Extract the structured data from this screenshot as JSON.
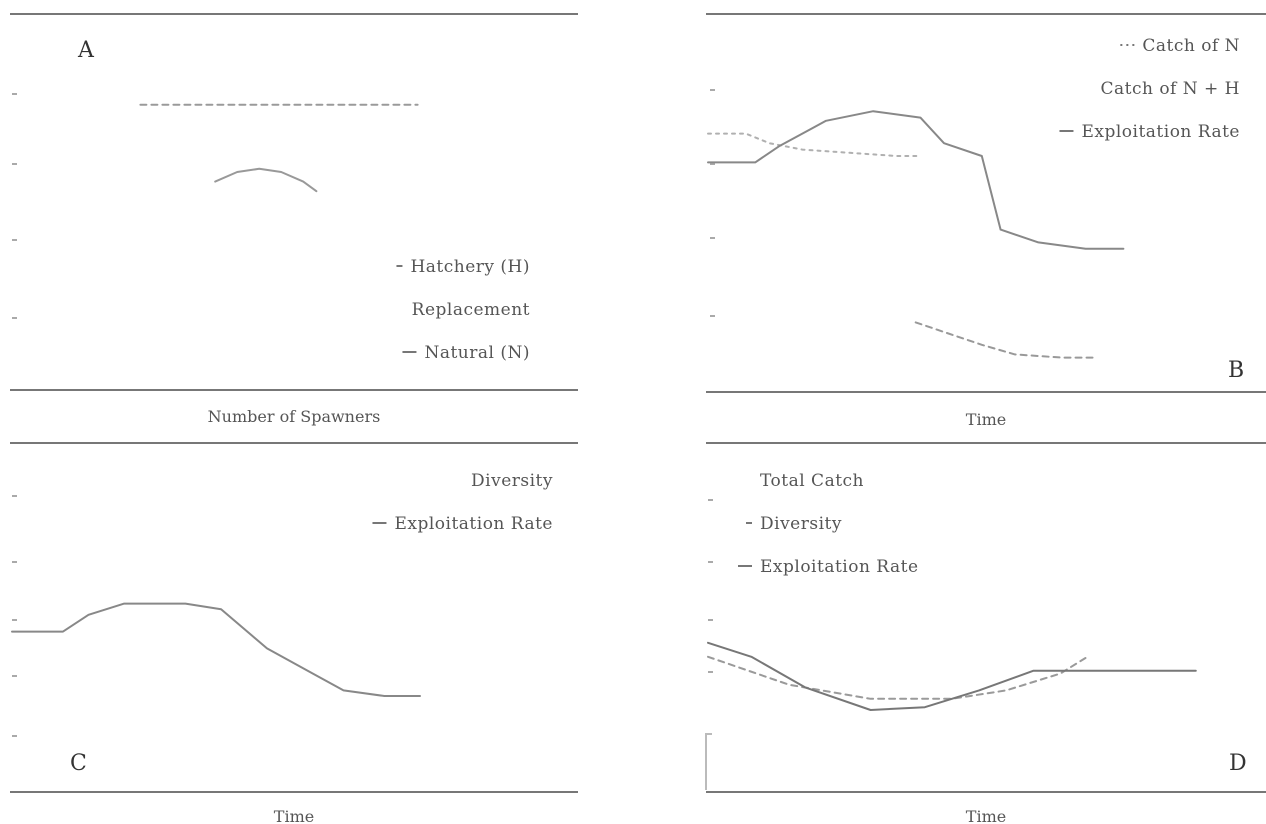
{
  "chart_data": [
    {
      "panel": "A",
      "type": "line",
      "xlabel": "Number of Spawners",
      "legend_placement": "bottom-right",
      "legend": [
        "Hatchery (H)",
        "Replacement",
        "Natural (N)"
      ],
      "xlim": [
        0,
        10
      ],
      "ylim": [
        0,
        10
      ],
      "series": [
        {
          "name": "Hatchery (H)",
          "style": "dashed",
          "color": "#9a9a9a",
          "x": [
            1.6,
            7.9
          ],
          "y": [
            8.6,
            8.6
          ]
        },
        {
          "name": "Natural (N)",
          "style": "solid",
          "color": "#999999",
          "x": [
            3.3,
            3.8,
            4.3,
            4.8,
            5.3,
            5.6
          ],
          "y": [
            6.2,
            6.5,
            6.6,
            6.5,
            6.2,
            5.9
          ]
        }
      ]
    },
    {
      "panel": "B",
      "type": "line",
      "xlabel": "Time",
      "legend_placement": "top-right",
      "legend": [
        "Catch of N",
        "Catch of N + H",
        "Exploitation Rate"
      ],
      "xlim": [
        0,
        10
      ],
      "ylim": [
        0,
        10
      ],
      "series": [
        {
          "name": "Catch of N",
          "style": "dotted",
          "color": "#b0b0b0",
          "x": [
            0,
            0.8,
            1.3,
            2.0,
            3.0,
            4.0,
            4.5
          ],
          "y": [
            7.7,
            7.7,
            7.4,
            7.2,
            7.1,
            7.0,
            7.0
          ]
        },
        {
          "name": "Exploitation Rate",
          "style": "solid",
          "color": "#888888",
          "x": [
            0,
            1.0,
            1.5,
            2.5,
            3.5,
            4.5,
            5.0,
            5.8,
            6.2,
            7.0,
            8.0,
            8.8
          ],
          "y": [
            6.8,
            6.8,
            7.3,
            8.1,
            8.4,
            8.2,
            7.4,
            7.0,
            4.7,
            4.3,
            4.1,
            4.1
          ]
        },
        {
          "name": "Catch of N + H",
          "style": "dashed",
          "color": "#999999",
          "x": [
            4.4,
            5.0,
            5.8,
            6.5,
            7.5,
            8.2
          ],
          "y": [
            1.8,
            1.5,
            1.1,
            0.8,
            0.7,
            0.7
          ]
        }
      ]
    },
    {
      "panel": "C",
      "type": "line",
      "xlabel": "Time",
      "legend_placement": "top-right",
      "legend": [
        "Diversity",
        "Exploitation Rate"
      ],
      "xlim": [
        0,
        10
      ],
      "ylim": [
        0,
        10
      ],
      "series": [
        {
          "name": "Exploitation Rate",
          "style": "solid",
          "color": "#888888",
          "x": [
            0,
            1.0,
            1.5,
            2.2,
            3.4,
            4.1,
            5.0,
            5.9,
            6.5,
            7.3,
            8.0
          ],
          "y": [
            5.3,
            5.3,
            5.9,
            6.3,
            6.3,
            6.1,
            4.7,
            3.8,
            3.2,
            3.0,
            3.0
          ]
        }
      ]
    },
    {
      "panel": "D",
      "type": "line",
      "xlabel": "Time",
      "legend_placement": "top-left",
      "legend": [
        "Total Catch",
        "Diversity",
        "Exploitation Rate"
      ],
      "xlim": [
        0,
        10
      ],
      "ylim": [
        0,
        10
      ],
      "series": [
        {
          "name": "Diversity",
          "style": "dashed",
          "color": "#9a9a9a",
          "x": [
            0,
            1.5,
            3.0,
            4.5,
            5.5,
            6.5,
            7.0
          ],
          "y": [
            4.4,
            3.4,
            2.9,
            2.9,
            3.2,
            3.8,
            4.4
          ]
        },
        {
          "name": "Exploitation Rate",
          "style": "solid",
          "color": "#777777",
          "x": [
            0,
            0.8,
            1.8,
            3.0,
            4.0,
            5.0,
            6.0,
            7.0,
            8.0,
            9.0
          ],
          "y": [
            4.9,
            4.4,
            3.3,
            2.5,
            2.6,
            3.2,
            3.9,
            3.9,
            3.9,
            3.9
          ]
        }
      ]
    }
  ]
}
